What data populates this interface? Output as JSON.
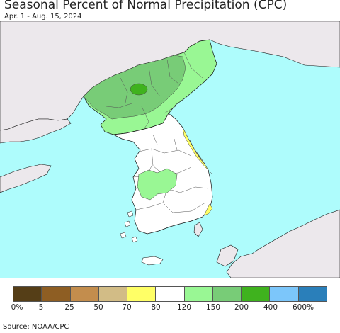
{
  "title": "Seasonal Percent of Normal Precipitation (CPC)",
  "subtitle": "Apr. 1 - Aug. 15, 2024",
  "source": "Source: NOAA/CPC",
  "colors": {
    "sea": "#aefcfc",
    "foreign_land": "#ece8ec",
    "normal": "#ffffff",
    "border": "#444444",
    "coast": "#111111"
  },
  "legend": {
    "colors": [
      "#553e17",
      "#8e5e23",
      "#c38d4d",
      "#d2bc86",
      "#ffff66",
      "#ffffff",
      "#99f794",
      "#78cc77",
      "#3fb21e",
      "#7cc6fa",
      "#2a7fba"
    ],
    "labels": [
      "0%",
      "5",
      "25",
      "50",
      "70",
      "80",
      "120",
      "150",
      "200",
      "400",
      "600%"
    ]
  },
  "regions": [
    {
      "name": "north-korea-northwest",
      "category": "150-200",
      "color": "#78cc77"
    },
    {
      "name": "north-korea-northeast",
      "category": "120-150",
      "color": "#99f794"
    },
    {
      "name": "north-korea-south",
      "category": "120-150",
      "color": "#99f794"
    },
    {
      "name": "ryanggang-core",
      "category": "200-400",
      "color": "#3fb21e"
    },
    {
      "name": "south-korea-southwest-patch",
      "category": "120-150",
      "color": "#99f794"
    },
    {
      "name": "east-coast-strip",
      "category": "70-80",
      "color": "#ffff66"
    },
    {
      "name": "east-coast-core",
      "category": "50-70",
      "color": "#d2bc86"
    },
    {
      "name": "southeast-coast-strip",
      "category": "70-80",
      "color": "#ffff66"
    }
  ]
}
